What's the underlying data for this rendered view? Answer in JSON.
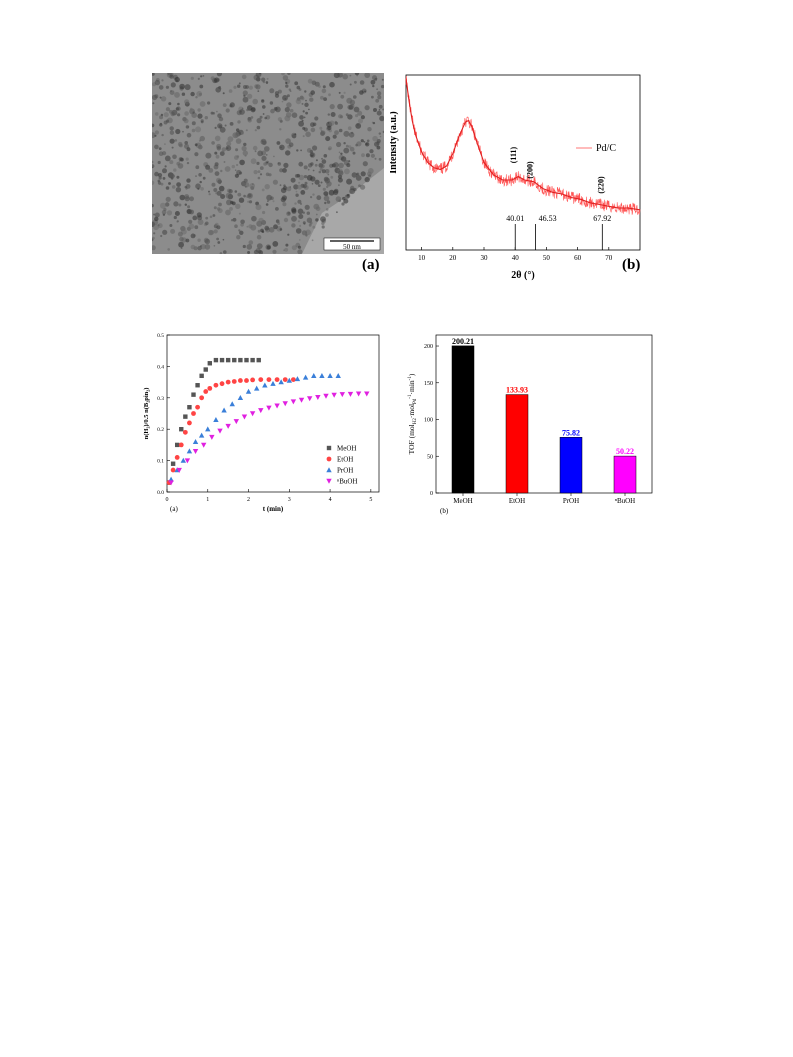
{
  "tem_panel": {
    "scale_bar_label": "50 nm",
    "panel_letter": "(a)"
  },
  "chart_data": [
    {
      "type": "line",
      "panel_letter": "(b)",
      "xlabel": "2θ (°)",
      "ylabel": "Intensity (a.u.)",
      "xlim": [
        5,
        80
      ],
      "xticks": [
        10,
        20,
        30,
        40,
        50,
        60,
        70
      ],
      "grid": false,
      "legend": {
        "position": "top-right",
        "entries": [
          "Pd/C"
        ]
      },
      "series": [
        {
          "name": "Pd/C",
          "color": "#ff5555",
          "x": [
            5,
            6,
            7,
            8,
            10,
            12,
            14,
            16,
            18,
            20,
            22,
            24,
            25,
            26,
            28,
            30,
            33,
            36,
            39,
            41,
            43,
            46,
            49,
            52,
            55,
            58,
            61,
            64,
            67,
            70,
            73,
            76,
            80
          ],
          "y": [
            0.98,
            0.85,
            0.74,
            0.66,
            0.56,
            0.5,
            0.47,
            0.46,
            0.48,
            0.55,
            0.65,
            0.73,
            0.74,
            0.71,
            0.6,
            0.5,
            0.43,
            0.4,
            0.4,
            0.42,
            0.4,
            0.39,
            0.35,
            0.33,
            0.32,
            0.3,
            0.29,
            0.27,
            0.26,
            0.25,
            0.24,
            0.24,
            0.23
          ]
        }
      ],
      "annotations": [
        {
          "text": "(111)",
          "x": 40.01
        },
        {
          "text": "(200)",
          "x": 46.53
        },
        {
          "text": "(220)",
          "x": 67.92
        }
      ],
      "reference_lines": [
        {
          "x": 40.01,
          "label": "40.01"
        },
        {
          "x": 46.53,
          "label": "46.53"
        },
        {
          "x": 67.92,
          "label": "67.92"
        }
      ]
    },
    {
      "type": "scatter",
      "panel_letter": "(a)",
      "xlabel": "t (min)",
      "ylabel": "n(H₂)/0.5 n(B₂pin₂)",
      "xlim": [
        0,
        5.2
      ],
      "ylim": [
        0,
        0.5
      ],
      "xticks": [
        0,
        1,
        2,
        3,
        4,
        5
      ],
      "yticks": [
        0.0,
        0.1,
        0.2,
        0.3,
        0.4,
        0.5
      ],
      "grid": false,
      "legend": {
        "position": "bottom-right"
      },
      "series": [
        {
          "name": "MeOH",
          "marker": "square",
          "color": "#555555",
          "x": [
            0.05,
            0.15,
            0.25,
            0.35,
            0.45,
            0.55,
            0.65,
            0.75,
            0.85,
            0.95,
            1.05,
            1.2,
            1.35,
            1.5,
            1.65,
            1.8,
            1.95,
            2.1,
            2.25
          ],
          "y": [
            0.03,
            0.09,
            0.15,
            0.2,
            0.24,
            0.27,
            0.31,
            0.34,
            0.37,
            0.39,
            0.41,
            0.42,
            0.42,
            0.42,
            0.42,
            0.42,
            0.42,
            0.42,
            0.42
          ]
        },
        {
          "name": "EtOH",
          "marker": "circle",
          "color": "#ff4444",
          "x": [
            0.05,
            0.15,
            0.25,
            0.35,
            0.45,
            0.55,
            0.65,
            0.75,
            0.85,
            0.95,
            1.05,
            1.2,
            1.35,
            1.5,
            1.65,
            1.8,
            1.95,
            2.1,
            2.3,
            2.5,
            2.7,
            2.9,
            3.1
          ],
          "y": [
            0.03,
            0.07,
            0.11,
            0.15,
            0.19,
            0.22,
            0.25,
            0.27,
            0.3,
            0.32,
            0.33,
            0.34,
            0.345,
            0.35,
            0.352,
            0.355,
            0.355,
            0.357,
            0.358,
            0.358,
            0.358,
            0.358,
            0.358
          ]
        },
        {
          "name": "PrOH",
          "marker": "triangle",
          "color": "#3a7fd9",
          "x": [
            0.1,
            0.25,
            0.4,
            0.55,
            0.7,
            0.85,
            1.0,
            1.2,
            1.4,
            1.6,
            1.8,
            2.0,
            2.2,
            2.4,
            2.6,
            2.8,
            3.0,
            3.2,
            3.4,
            3.6,
            3.8,
            4.0,
            4.2
          ],
          "y": [
            0.04,
            0.07,
            0.1,
            0.13,
            0.16,
            0.18,
            0.2,
            0.23,
            0.26,
            0.28,
            0.3,
            0.32,
            0.33,
            0.34,
            0.345,
            0.35,
            0.355,
            0.36,
            0.365,
            0.37,
            0.37,
            0.37,
            0.37
          ]
        },
        {
          "name": "ⁿBuOH",
          "marker": "triangle-down",
          "color": "#e020e0",
          "x": [
            0.1,
            0.3,
            0.5,
            0.7,
            0.9,
            1.1,
            1.3,
            1.5,
            1.7,
            1.9,
            2.1,
            2.3,
            2.5,
            2.7,
            2.9,
            3.1,
            3.3,
            3.5,
            3.7,
            3.9,
            4.1,
            4.3,
            4.5,
            4.7,
            4.9
          ],
          "y": [
            0.03,
            0.07,
            0.1,
            0.13,
            0.15,
            0.175,
            0.195,
            0.21,
            0.225,
            0.24,
            0.25,
            0.26,
            0.268,
            0.275,
            0.282,
            0.288,
            0.293,
            0.298,
            0.302,
            0.306,
            0.309,
            0.311,
            0.312,
            0.313,
            0.313
          ]
        }
      ]
    },
    {
      "type": "bar",
      "panel_letter": "(b)",
      "ylabel": "TOF (mol",
      "ylabel_h2": "H2",
      "ylabel_mid": "·mol",
      "ylabel_pd": "Pd",
      "ylabel_end": "·min",
      "ylim": [
        0,
        215
      ],
      "yticks": [
        0,
        50,
        100,
        150,
        200
      ],
      "categories": [
        "MeOH",
        "EtOH",
        "PrOH",
        "ⁿBuOH"
      ],
      "values": [
        200.21,
        133.93,
        75.82,
        50.22
      ],
      "value_labels": [
        "200.21",
        "133.93",
        "75.82",
        "50.22"
      ],
      "colors": [
        "#000000",
        "#ff0000",
        "#0000ff",
        "#ff00ff"
      ],
      "label_colors": [
        "#000000",
        "#ff0000",
        "#0000ff",
        "#ff00ff"
      ]
    }
  ]
}
